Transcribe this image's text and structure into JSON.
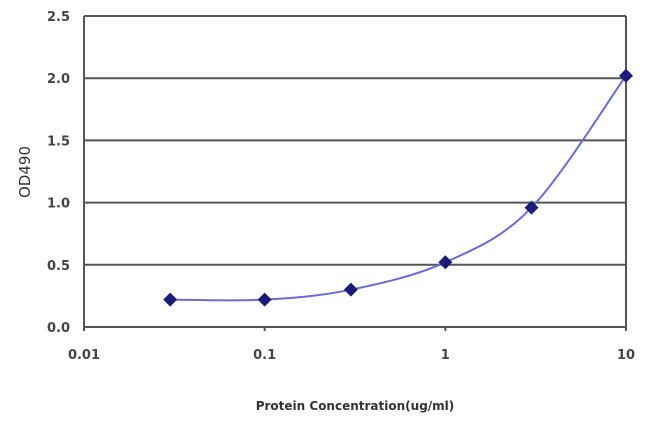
{
  "chart_data": {
    "type": "line",
    "title": "",
    "xlabel": "Protein Concentration(ug/ml)",
    "ylabel": "OD490",
    "x_scale": "log",
    "xlim": [
      0.01,
      10
    ],
    "ylim": [
      0,
      2.5
    ],
    "x_ticks": [
      "0.01",
      "0.1",
      "1",
      "10"
    ],
    "y_ticks": [
      "0.0",
      "0.5",
      "1.0",
      "1.5",
      "2.0",
      "2.5"
    ],
    "grid": "horizontal",
    "series": [
      {
        "x": [
          0.03,
          0.1,
          0.3,
          1,
          3,
          10
        ],
        "values": [
          0.22,
          0.22,
          0.3,
          0.52,
          0.96,
          2.02
        ]
      }
    ],
    "colors": {
      "line": "#6b6bd0",
      "marker": "#1c1c78",
      "grid": "#555555"
    }
  }
}
